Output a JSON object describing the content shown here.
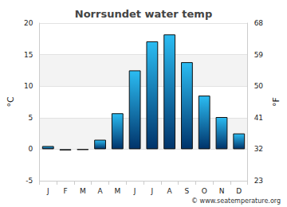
{
  "chart_data": {
    "type": "bar",
    "title": "Norrsundet water temp",
    "categories": [
      "J",
      "F",
      "M",
      "A",
      "M",
      "J",
      "J",
      "A",
      "S",
      "O",
      "N",
      "D"
    ],
    "values": [
      0.5,
      -0.2,
      -0.1,
      1.5,
      5.7,
      12.5,
      17.1,
      18.2,
      13.8,
      8.5,
      5.1,
      2.5
    ],
    "color": "#2bbcf2",
    "ylabel": "°C",
    "y2label": "°F",
    "ylim": [
      -5,
      20
    ],
    "yticks": [
      -5,
      0,
      5,
      10,
      15,
      20
    ],
    "y2lim": [
      23,
      68
    ],
    "y2ticks": [
      23,
      32,
      41,
      50,
      59,
      68
    ],
    "source": "© www.seatemperature.org",
    "grid": true
  }
}
